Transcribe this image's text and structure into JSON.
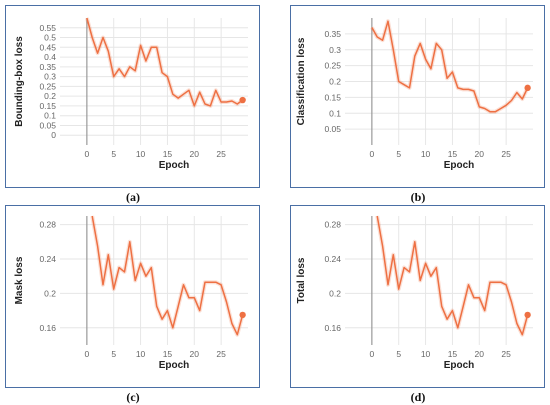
{
  "chart_data": [
    {
      "type": "line",
      "panel_label": "a",
      "xlabel": "Epoch",
      "ylabel": "Bounding-box loss",
      "xlim": [
        -5,
        30
      ],
      "ylim": [
        -0.05,
        0.6
      ],
      "x_ticks": [
        0,
        5,
        10,
        15,
        20,
        25
      ],
      "y_ticks": [
        0,
        0.05,
        0.1,
        0.15,
        0.2,
        0.25,
        0.3,
        0.35,
        0.4,
        0.45,
        0.5,
        0.55
      ],
      "y_tick_labels": [
        "0",
        "0.05",
        "0.1",
        "0.15",
        "0.2",
        "0.25",
        "0.3",
        "0.35",
        "0.4",
        "0.45",
        "0.5",
        "0.55"
      ],
      "series": [
        {
          "color": "#ee7043",
          "x": [
            0,
            1,
            2,
            3,
            4,
            5,
            6,
            7,
            8,
            9,
            10,
            11,
            12,
            13,
            14,
            15,
            16,
            17,
            18,
            19,
            20,
            21,
            22,
            23,
            24,
            25,
            26,
            27,
            28,
            29
          ],
          "values": [
            0.6,
            0.5,
            0.42,
            0.5,
            0.43,
            0.3,
            0.34,
            0.3,
            0.35,
            0.33,
            0.46,
            0.38,
            0.45,
            0.45,
            0.32,
            0.3,
            0.21,
            0.19,
            0.21,
            0.23,
            0.15,
            0.22,
            0.16,
            0.15,
            0.23,
            0.17,
            0.17,
            0.175,
            0.16,
            0.18
          ]
        }
      ]
    },
    {
      "type": "line",
      "panel_label": "b",
      "xlabel": "Epoch",
      "ylabel": "Classification loss",
      "xlim": [
        -5,
        30
      ],
      "ylim": [
        0,
        0.4
      ],
      "x_ticks": [
        0,
        5,
        10,
        15,
        20,
        25
      ],
      "y_ticks": [
        0.05,
        0.1,
        0.15,
        0.2,
        0.25,
        0.3,
        0.35
      ],
      "y_tick_labels": [
        "0.05",
        "0.1",
        "0.15",
        "0.2",
        "0.25",
        "0.3",
        "0.35"
      ],
      "series": [
        {
          "color": "#ee7043",
          "x": [
            0,
            1,
            2,
            3,
            4,
            5,
            6,
            7,
            8,
            9,
            10,
            11,
            12,
            13,
            14,
            15,
            16,
            17,
            18,
            19,
            20,
            21,
            22,
            23,
            24,
            25,
            26,
            27,
            28,
            29
          ],
          "values": [
            0.37,
            0.34,
            0.33,
            0.39,
            0.3,
            0.2,
            0.19,
            0.18,
            0.28,
            0.32,
            0.27,
            0.24,
            0.32,
            0.3,
            0.21,
            0.23,
            0.18,
            0.175,
            0.175,
            0.17,
            0.12,
            0.115,
            0.105,
            0.105,
            0.115,
            0.125,
            0.14,
            0.165,
            0.145,
            0.18
          ]
        }
      ]
    },
    {
      "type": "line",
      "panel_label": "c",
      "xlabel": "Epoch",
      "ylabel": "Mask loss",
      "xlim": [
        -5,
        30
      ],
      "ylim": [
        0.14,
        0.29
      ],
      "x_ticks": [
        0,
        5,
        10,
        15,
        20,
        25
      ],
      "y_ticks": [
        0.16,
        0.2,
        0.24,
        0.28
      ],
      "y_tick_labels": [
        "0.16",
        "0.2",
        "0.24",
        "0.28"
      ],
      "series": [
        {
          "color": "#ee7043",
          "x": [
            1,
            2,
            3,
            4,
            5,
            6,
            7,
            8,
            9,
            10,
            11,
            12,
            13,
            14,
            15,
            16,
            17,
            18,
            19,
            20,
            21,
            22,
            23,
            24,
            25,
            26,
            27,
            28,
            29
          ],
          "values": [
            0.29,
            0.255,
            0.21,
            0.245,
            0.205,
            0.23,
            0.225,
            0.26,
            0.215,
            0.235,
            0.22,
            0.23,
            0.185,
            0.17,
            0.18,
            0.16,
            0.185,
            0.21,
            0.195,
            0.195,
            0.18,
            0.213,
            0.213,
            0.213,
            0.21,
            0.19,
            0.165,
            0.152,
            0.175
          ]
        }
      ]
    },
    {
      "type": "line",
      "panel_label": "d",
      "xlabel": "Epoch",
      "ylabel": "Total loss",
      "xlim": [
        -5,
        30
      ],
      "ylim": [
        0.14,
        0.29
      ],
      "x_ticks": [
        0,
        5,
        10,
        15,
        20,
        25
      ],
      "y_ticks": [
        0.16,
        0.2,
        0.24,
        0.28
      ],
      "y_tick_labels": [
        "0.16",
        "0.2",
        "0.24",
        "0.28"
      ],
      "series": [
        {
          "color": "#ee7043",
          "x": [
            1,
            2,
            3,
            4,
            5,
            6,
            7,
            8,
            9,
            10,
            11,
            12,
            13,
            14,
            15,
            16,
            17,
            18,
            19,
            20,
            21,
            22,
            23,
            24,
            25,
            26,
            27,
            28,
            29
          ],
          "values": [
            0.29,
            0.255,
            0.21,
            0.245,
            0.205,
            0.23,
            0.225,
            0.26,
            0.215,
            0.235,
            0.22,
            0.23,
            0.185,
            0.17,
            0.18,
            0.16,
            0.185,
            0.21,
            0.195,
            0.195,
            0.18,
            0.213,
            0.213,
            0.213,
            0.21,
            0.19,
            0.165,
            0.152,
            0.175
          ]
        }
      ]
    }
  ],
  "captions": [
    "(a)",
    "(b)",
    "(c)",
    "(d)"
  ],
  "colors": {
    "frame": "#4a6fa5",
    "line": "#ee7043",
    "grid": "#e6e6e6",
    "zero_axis": "#999999"
  }
}
